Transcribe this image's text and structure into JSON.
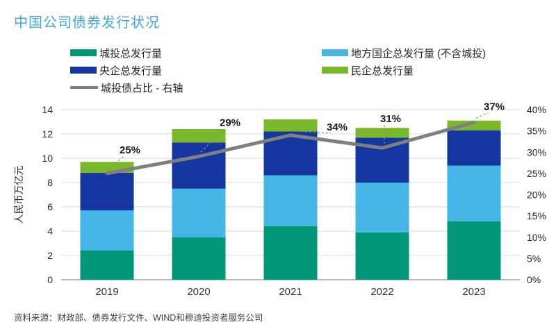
{
  "title": "中国公司债券发行状况",
  "source": "资料来源：财政部、债券发行文件、WIND和穆迪投资者服务公司",
  "colors": {
    "title": "#3fa7da",
    "chengtou": "#009878",
    "local_soe": "#45b5e6",
    "central_soe": "#1535a0",
    "private": "#79b829",
    "ratio_line": "#7f7f7f",
    "gridline": "#d9d9d9",
    "axis_line": "#a6a6a6",
    "tick_text": "#262626"
  },
  "legend": {
    "columns": [
      {
        "items": [
          {
            "label": "城投总发行量",
            "swatch": "bar",
            "color": "#009878"
          },
          {
            "label": "央企总发行量",
            "swatch": "bar",
            "color": "#1535a0"
          },
          {
            "label": "城投债占比 - 右轴",
            "swatch": "line",
            "color": "#7f7f7f"
          }
        ]
      },
      {
        "items": [
          {
            "label": "地方国企总发行量 (不含城投)",
            "swatch": "bar",
            "color": "#45b5e6"
          },
          {
            "label": "民企总发行量",
            "swatch": "bar",
            "color": "#79b829"
          }
        ]
      }
    ]
  },
  "chart_data": {
    "type": "bar",
    "subtype": "stacked-bar-with-line",
    "categories": [
      "2019",
      "2020",
      "2021",
      "2022",
      "2023"
    ],
    "series": [
      {
        "name": "城投总发行量",
        "type": "bar",
        "color": "#009878",
        "values": [
          2.4,
          3.5,
          4.4,
          3.9,
          4.8
        ]
      },
      {
        "name": "地方国企总发行量 (不含城投)",
        "type": "bar",
        "color": "#45b5e6",
        "values": [
          3.3,
          4.0,
          4.2,
          4.1,
          4.6
        ]
      },
      {
        "name": "央企总发行量",
        "type": "bar",
        "color": "#1535a0",
        "values": [
          3.1,
          3.8,
          3.6,
          3.7,
          2.9
        ]
      },
      {
        "name": "民企总发行量",
        "type": "bar",
        "color": "#79b829",
        "values": [
          0.9,
          1.1,
          1.0,
          0.8,
          0.8
        ]
      },
      {
        "name": "城投债占比 - 右轴",
        "type": "line",
        "axis": "right",
        "color": "#7f7f7f",
        "values": [
          25,
          29,
          34,
          31,
          37
        ],
        "point_labels": [
          "25%",
          "29%",
          "34%",
          "31%",
          "37%"
        ]
      }
    ],
    "left_axis": {
      "title": "人民币万亿元",
      "min": 0,
      "max": 14,
      "step": 2,
      "ticks": [
        0,
        2,
        4,
        6,
        8,
        10,
        12,
        14
      ]
    },
    "right_axis": {
      "min": 0,
      "max": 40,
      "step": 5,
      "suffix": "%",
      "ticks": [
        "0%",
        "5%",
        "10%",
        "15%",
        "20%",
        "25%",
        "30%",
        "35%",
        "40%"
      ]
    },
    "grid": true,
    "legend_position": "top"
  }
}
